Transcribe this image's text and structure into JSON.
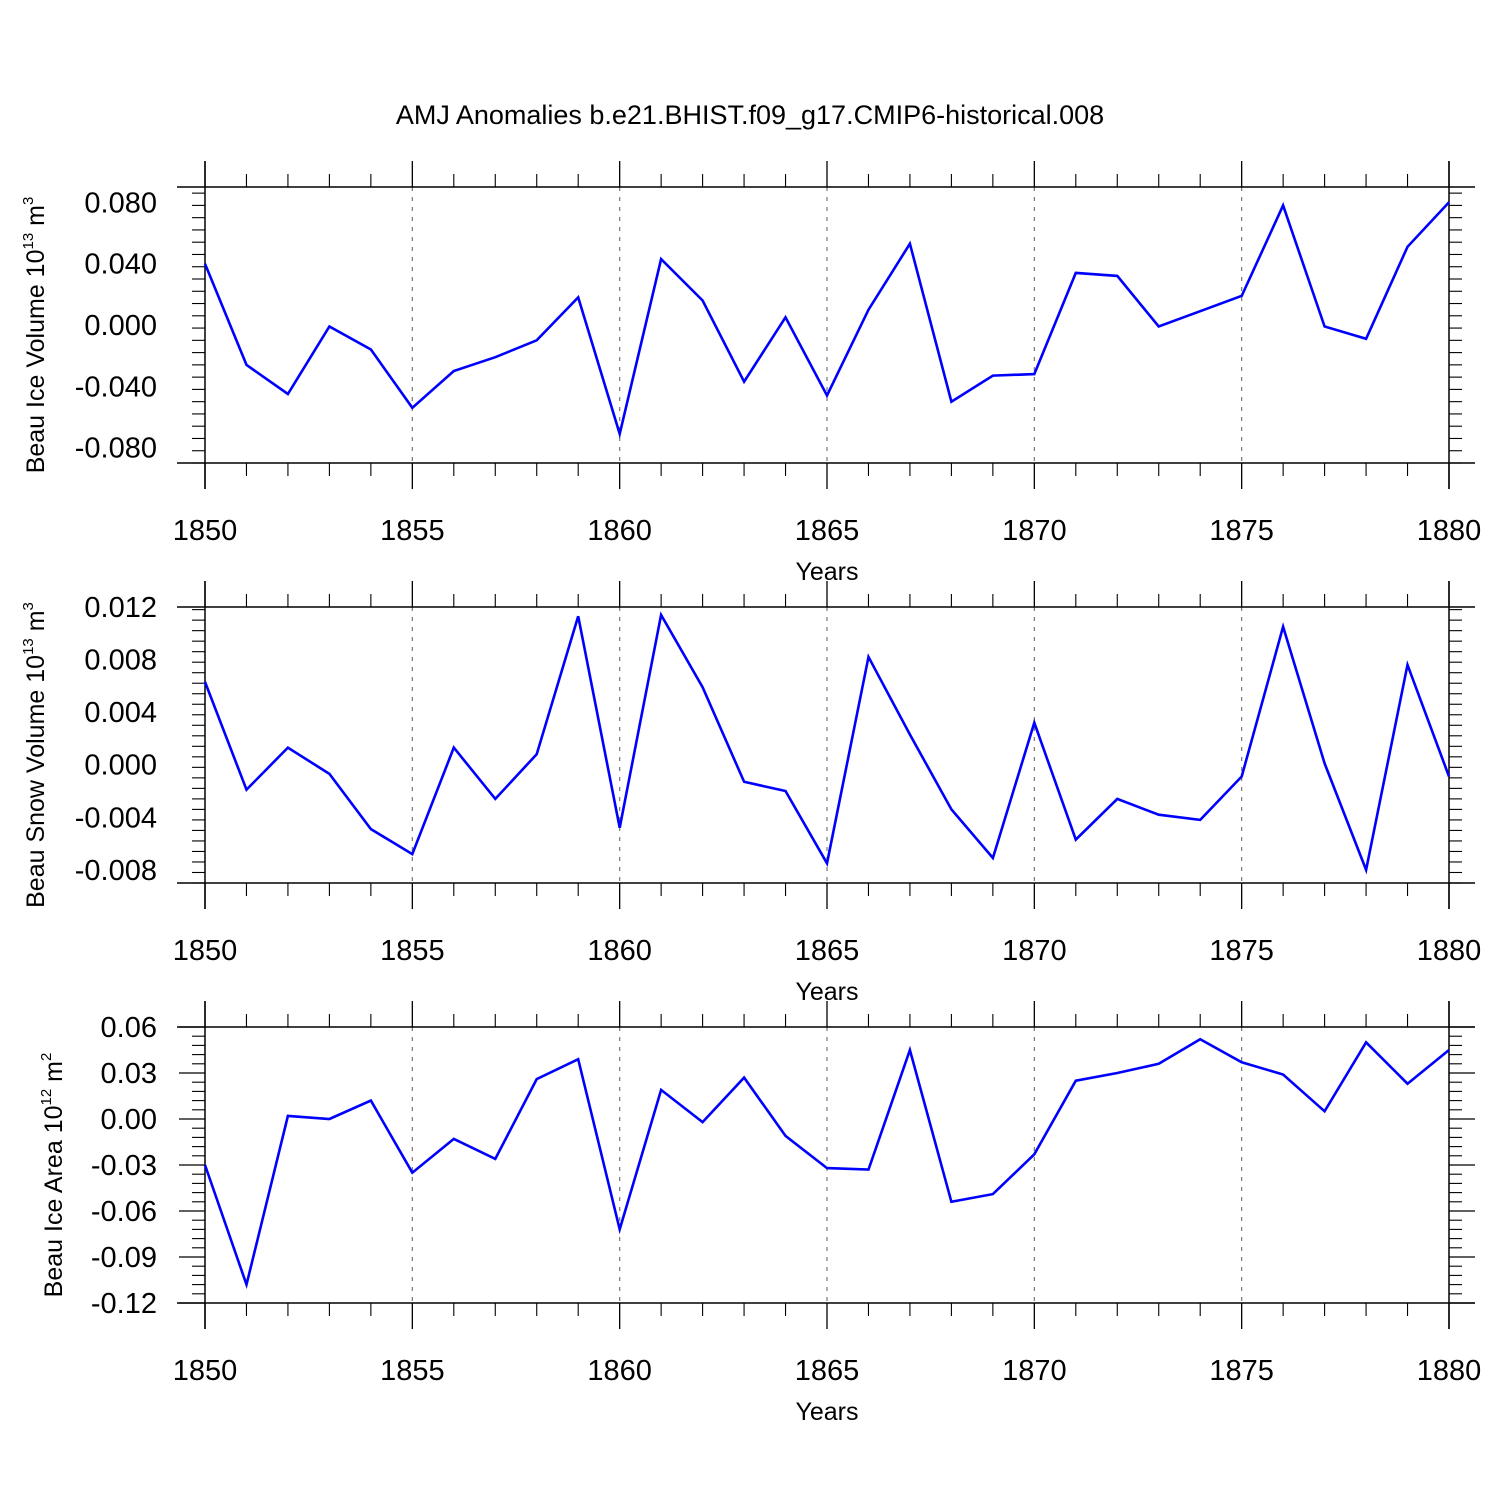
{
  "title": "AMJ Anomalies b.e21.BHIST.f09_g17.CMIP6-historical.008",
  "colors": {
    "series": "#0000ff",
    "axis": "#000000",
    "grid": "#777777",
    "background": "#ffffff"
  },
  "chart_data": [
    {
      "type": "line",
      "title": "",
      "xlabel": "Years",
      "ylabel": {
        "prefix": "Beau Ice Volume 10",
        "exp1": "13",
        "mid": " m",
        "exp2": "3"
      },
      "xlim": [
        1850,
        1880
      ],
      "ylim": [
        -0.09,
        0.09
      ],
      "x_ticks": [
        1850,
        1855,
        1860,
        1865,
        1870,
        1875,
        1880
      ],
      "x_tick_labels": [
        "1850",
        "1855",
        "1860",
        "1865",
        "1870",
        "1875",
        "1880"
      ],
      "y_ticks": [
        0.08,
        0.04,
        0.0,
        -0.04,
        -0.08
      ],
      "y_tick_labels": [
        "0.080",
        "0.040",
        "0.000",
        "-0.040",
        "-0.080"
      ],
      "grid": "dashed vertical at major x ticks",
      "series": [
        {
          "name": "Beau Ice Volume",
          "x": [
            1850,
            1851,
            1852,
            1853,
            1854,
            1855,
            1856,
            1857,
            1858,
            1859,
            1860,
            1861,
            1862,
            1863,
            1864,
            1865,
            1866,
            1867,
            1868,
            1869,
            1870,
            1871,
            1872,
            1873,
            1874,
            1875,
            1876,
            1877,
            1878,
            1879,
            1880
          ],
          "values": [
            0.04,
            -0.026,
            -0.045,
            -0.001,
            -0.016,
            -0.054,
            -0.03,
            -0.021,
            -0.01,
            0.018,
            -0.071,
            0.043,
            0.016,
            -0.037,
            0.005,
            -0.046,
            0.01,
            0.053,
            -0.05,
            -0.033,
            -0.032,
            0.034,
            0.032,
            -0.001,
            0.009,
            0.019,
            0.078,
            -0.001,
            -0.009,
            0.051,
            0.08
          ]
        }
      ]
    },
    {
      "type": "line",
      "title": "",
      "xlabel": "Years",
      "ylabel": {
        "prefix": "Beau Snow Volume 10",
        "exp1": "13",
        "mid": " m",
        "exp2": "3"
      },
      "xlim": [
        1850,
        1880
      ],
      "ylim": [
        -0.009,
        0.012
      ],
      "x_ticks": [
        1850,
        1855,
        1860,
        1865,
        1870,
        1875,
        1880
      ],
      "x_tick_labels": [
        "1850",
        "1855",
        "1860",
        "1865",
        "1870",
        "1875",
        "1880"
      ],
      "y_ticks": [
        0.012,
        0.008,
        0.004,
        0.0,
        -0.004,
        -0.008
      ],
      "y_tick_labels": [
        "0.012",
        "0.008",
        "0.004",
        "0.000",
        "-0.004",
        "-0.008"
      ],
      "grid": "dashed vertical at major x ticks",
      "series": [
        {
          "name": "Beau Snow Volume",
          "x": [
            1850,
            1851,
            1852,
            1853,
            1854,
            1855,
            1856,
            1857,
            1858,
            1859,
            1860,
            1861,
            1862,
            1863,
            1864,
            1865,
            1866,
            1867,
            1868,
            1869,
            1870,
            1871,
            1872,
            1873,
            1874,
            1875,
            1876,
            1877,
            1878,
            1879,
            1880
          ],
          "values": [
            0.0063,
            -0.0019,
            0.0013,
            -0.0007,
            -0.0049,
            -0.0068,
            0.0013,
            -0.0026,
            0.0008,
            0.0113,
            -0.0048,
            0.0114,
            0.0059,
            -0.0013,
            -0.002,
            -0.0075,
            0.0082,
            0.0023,
            -0.0034,
            -0.0071,
            0.0032,
            -0.0057,
            -0.0026,
            -0.0038,
            -0.0042,
            -0.0009,
            0.0105,
            0.0001,
            -0.008,
            0.0076,
            -0.0009
          ]
        }
      ]
    },
    {
      "type": "line",
      "title": "",
      "xlabel": "Years",
      "ylabel": {
        "prefix": "Beau Ice Area 10",
        "exp1": "12",
        "mid": " m",
        "exp2": "2"
      },
      "xlim": [
        1850,
        1880
      ],
      "ylim": [
        -0.12,
        0.06
      ],
      "x_ticks": [
        1850,
        1855,
        1860,
        1865,
        1870,
        1875,
        1880
      ],
      "x_tick_labels": [
        "1850",
        "1855",
        "1860",
        "1865",
        "1870",
        "1875",
        "1880"
      ],
      "y_ticks": [
        0.06,
        0.03,
        0.0,
        -0.03,
        -0.06,
        -0.09,
        -0.12
      ],
      "y_tick_labels": [
        "0.06",
        "0.03",
        "0.00",
        "-0.03",
        "-0.06",
        "-0.09",
        "-0.12"
      ],
      "grid": "dashed vertical at major x ticks",
      "series": [
        {
          "name": "Beau Ice Area",
          "x": [
            1850,
            1851,
            1852,
            1853,
            1854,
            1855,
            1856,
            1857,
            1858,
            1859,
            1860,
            1861,
            1862,
            1863,
            1864,
            1865,
            1866,
            1867,
            1868,
            1869,
            1870,
            1871,
            1872,
            1873,
            1874,
            1875,
            1876,
            1877,
            1878,
            1879,
            1880
          ],
          "values": [
            -0.03,
            -0.108,
            0.002,
            0.0,
            0.012,
            -0.035,
            -0.013,
            -0.026,
            0.026,
            0.039,
            -0.072,
            0.019,
            -0.002,
            0.027,
            -0.011,
            -0.032,
            -0.033,
            0.045,
            -0.054,
            -0.049,
            -0.023,
            0.025,
            0.03,
            0.036,
            0.052,
            0.037,
            0.029,
            0.005,
            0.05,
            0.023,
            0.045
          ]
        }
      ]
    }
  ]
}
